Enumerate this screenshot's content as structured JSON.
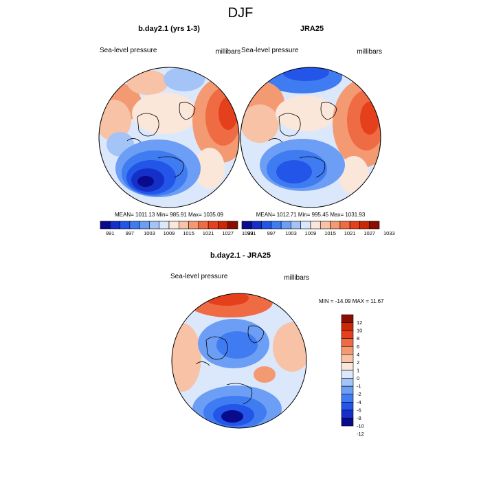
{
  "figure": {
    "title": "DJF"
  },
  "colors": {
    "scale12": [
      "#0a0a8c",
      "#1430c8",
      "#2255e8",
      "#3f7cf2",
      "#6c9ef5",
      "#a4c4f7",
      "#dbe8fb",
      "#fbe6da",
      "#f7c2a6",
      "#f49a72",
      "#ef6b43",
      "#e5401c",
      "#cc2806",
      "#8b0c00"
    ],
    "scale13": [
      "#0a0a8c",
      "#1430c8",
      "#2255e8",
      "#3f7cf2",
      "#6c9ef5",
      "#a4c4f7",
      "#dbe8fb",
      "#fbe6da",
      "#f7c2a6",
      "#f49a72",
      "#ef6b43",
      "#e5401c",
      "#cc2806",
      "#8b0c00"
    ]
  },
  "chart_data": [
    {
      "type": "heatmap",
      "projection": "polar-stereographic",
      "title": "b.day2.1 (yrs 1-3)",
      "left_label": "Sea-level pressure",
      "right_label": "millibars",
      "stats": "MEAN= 1011.13  Min= 985.91  Max= 1035.09",
      "colorbar_levels": [
        991,
        994,
        997,
        1000,
        1003,
        1006,
        1009,
        1012,
        1015,
        1018,
        1021,
        1024,
        1027,
        1030,
        1033
      ],
      "colorbar_tick_labels": [
        "991",
        "997",
        "1003",
        "1009",
        "1015",
        "1021",
        "1027",
        "1033"
      ],
      "colorbar_orientation": "horizontal",
      "mean": 1011.13,
      "min": 985.91,
      "max": 1035.09
    },
    {
      "type": "heatmap",
      "projection": "polar-stereographic",
      "title": "JRA25",
      "left_label": "Sea-level pressure",
      "right_label": "millibars",
      "stats": "MEAN= 1012.71  Min= 995.45  Max= 1031.93",
      "colorbar_levels": [
        991,
        994,
        997,
        1000,
        1003,
        1006,
        1009,
        1012,
        1015,
        1018,
        1021,
        1024,
        1027,
        1030,
        1033
      ],
      "colorbar_tick_labels": [
        "991",
        "997",
        "1003",
        "1009",
        "1015",
        "1021",
        "1027",
        "1033"
      ],
      "colorbar_orientation": "horizontal",
      "mean": 1012.71,
      "min": 995.45,
      "max": 1031.93
    },
    {
      "type": "heatmap",
      "projection": "polar-stereographic",
      "title": "b.day2.1 - JRA25",
      "left_label": "Sea-level pressure",
      "right_label": "millibars",
      "stats": "MIN = -14.09 MAX =  11.67",
      "colorbar_levels": [
        -12,
        -10,
        -8,
        -6,
        -4,
        -2,
        -1,
        0,
        1,
        2,
        4,
        6,
        8,
        10,
        12
      ],
      "colorbar_tick_labels": [
        "12",
        "10",
        "8",
        "6",
        "4",
        "2",
        "1",
        "0",
        "-1",
        "-2",
        "-4",
        "-6",
        "-8",
        "-10",
        "-12"
      ],
      "colorbar_orientation": "vertical",
      "min": -14.09,
      "max": 11.67
    }
  ]
}
